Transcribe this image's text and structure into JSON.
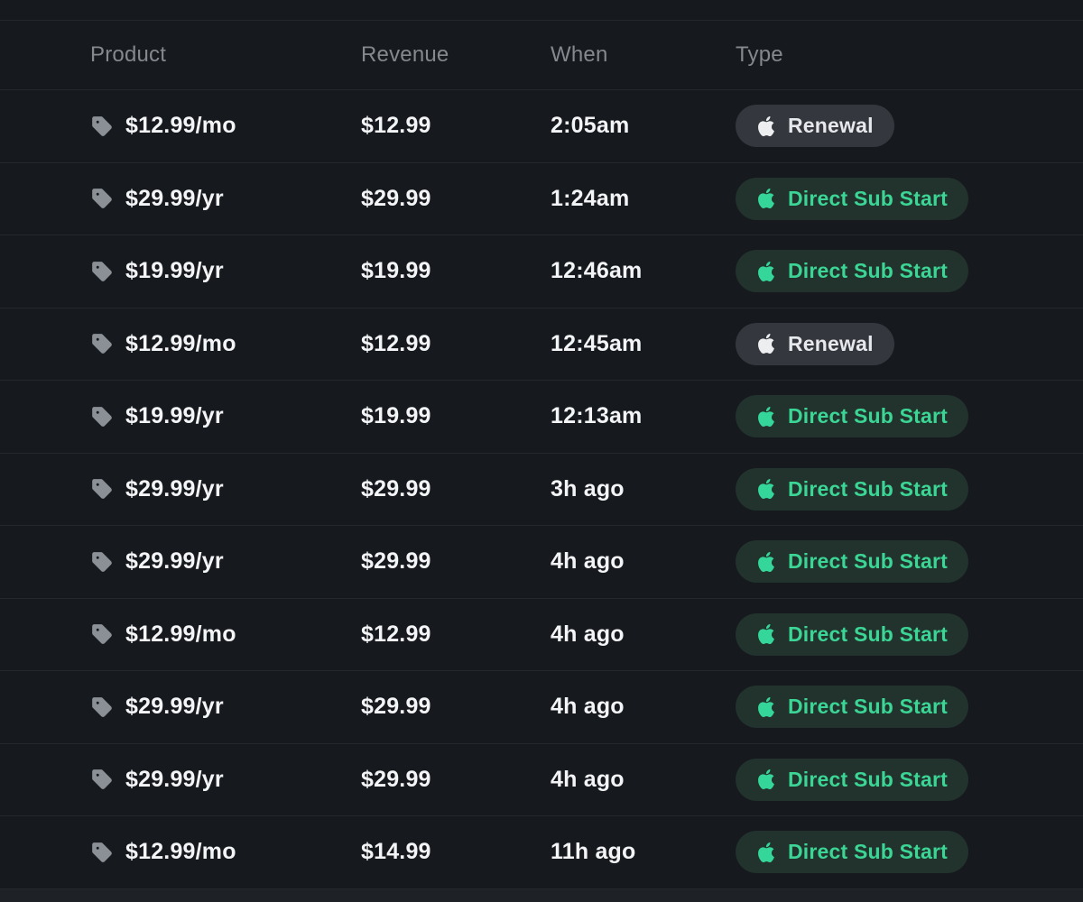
{
  "table": {
    "columns": [
      {
        "label": "Product"
      },
      {
        "label": "Revenue"
      },
      {
        "label": "When"
      },
      {
        "label": "Type"
      }
    ],
    "row_icon": "tag-icon",
    "rows": [
      {
        "product": "$12.99/mo",
        "revenue": "$12.99",
        "when": "2:05am",
        "type": {
          "label": "Renewal",
          "variant": "neutral",
          "platform_icon": "apple-icon"
        }
      },
      {
        "product": "$29.99/yr",
        "revenue": "$29.99",
        "when": "1:24am",
        "type": {
          "label": "Direct Sub Start",
          "variant": "positive",
          "platform_icon": "apple-icon"
        }
      },
      {
        "product": "$19.99/yr",
        "revenue": "$19.99",
        "when": "12:46am",
        "type": {
          "label": "Direct Sub Start",
          "variant": "positive",
          "platform_icon": "apple-icon"
        }
      },
      {
        "product": "$12.99/mo",
        "revenue": "$12.99",
        "when": "12:45am",
        "type": {
          "label": "Renewal",
          "variant": "neutral",
          "platform_icon": "apple-icon"
        }
      },
      {
        "product": "$19.99/yr",
        "revenue": "$19.99",
        "when": "12:13am",
        "type": {
          "label": "Direct Sub Start",
          "variant": "positive",
          "platform_icon": "apple-icon"
        }
      },
      {
        "product": "$29.99/yr",
        "revenue": "$29.99",
        "when": "3h ago",
        "type": {
          "label": "Direct Sub Start",
          "variant": "positive",
          "platform_icon": "apple-icon"
        }
      },
      {
        "product": "$29.99/yr",
        "revenue": "$29.99",
        "when": "4h ago",
        "type": {
          "label": "Direct Sub Start",
          "variant": "positive",
          "platform_icon": "apple-icon"
        }
      },
      {
        "product": "$12.99/mo",
        "revenue": "$12.99",
        "when": "4h ago",
        "type": {
          "label": "Direct Sub Start",
          "variant": "positive",
          "platform_icon": "apple-icon"
        }
      },
      {
        "product": "$29.99/yr",
        "revenue": "$29.99",
        "when": "4h ago",
        "type": {
          "label": "Direct Sub Start",
          "variant": "positive",
          "platform_icon": "apple-icon"
        }
      },
      {
        "product": "$29.99/yr",
        "revenue": "$29.99",
        "when": "4h ago",
        "type": {
          "label": "Direct Sub Start",
          "variant": "positive",
          "platform_icon": "apple-icon"
        }
      },
      {
        "product": "$12.99/mo",
        "revenue": "$14.99",
        "when": "11h ago",
        "type": {
          "label": "Direct Sub Start",
          "variant": "positive",
          "platform_icon": "apple-icon"
        }
      }
    ]
  },
  "colors": {
    "background": "#16191e",
    "divider": "#25282e",
    "header_text": "#85888e",
    "row_text": "#f3f4f6",
    "tag_icon": "#8b9097",
    "badge_neutral_bg": "#34373d",
    "badge_neutral_fg": "#e6e8eb",
    "badge_positive_bg": "#22322c",
    "badge_positive_fg": "#3bd695"
  }
}
